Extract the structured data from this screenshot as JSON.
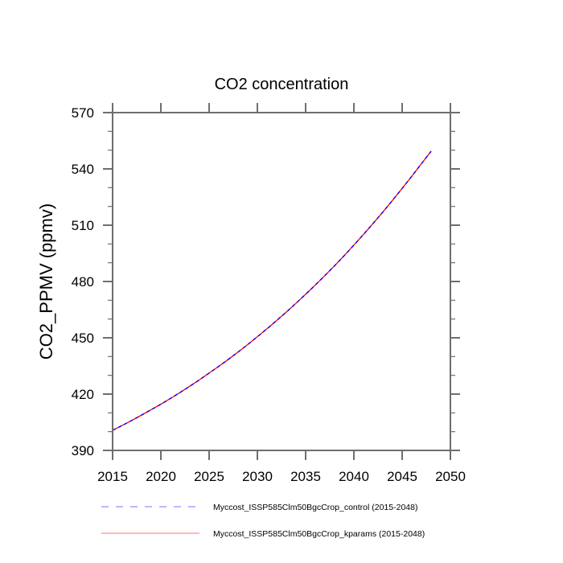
{
  "chart_data": {
    "type": "line",
    "title": "CO2 concentration",
    "xlabel": "",
    "ylabel": "CO2_PPMV  (ppmv)",
    "xlim": [
      2015,
      2050
    ],
    "ylim": [
      390,
      570
    ],
    "xticks": [
      2015,
      2020,
      2025,
      2030,
      2035,
      2040,
      2045,
      2050
    ],
    "xtick_labels": [
      "2015",
      "2020",
      "2025",
      "2030",
      "2035",
      "2040",
      "2045",
      "2050"
    ],
    "yticks": [
      390,
      420,
      450,
      480,
      510,
      540,
      570
    ],
    "ytick_labels": [
      "390",
      "420",
      "450",
      "480",
      "510",
      "540",
      "570"
    ],
    "grid": false,
    "legend_position": "bottom",
    "x": [
      2015,
      2016,
      2017,
      2018,
      2019,
      2020,
      2021,
      2022,
      2023,
      2024,
      2025,
      2026,
      2027,
      2028,
      2029,
      2030,
      2031,
      2032,
      2033,
      2034,
      2035,
      2036,
      2037,
      2038,
      2039,
      2040,
      2041,
      2042,
      2043,
      2044,
      2045,
      2046,
      2047,
      2048
    ],
    "series": [
      {
        "name": "Myccost_ISSP585Clm50BgcCrop_control (2015-2048)",
        "color": "#0000ff",
        "style": "dashed",
        "values": [
          400.7,
          403.3,
          406.0,
          408.8,
          411.7,
          414.6,
          417.7,
          420.9,
          424.2,
          427.6,
          431.2,
          434.8,
          438.5,
          442.4,
          446.4,
          450.6,
          454.8,
          459.2,
          463.7,
          468.4,
          473.2,
          478.1,
          483.2,
          488.4,
          493.8,
          499.4,
          505.1,
          511.0,
          517.0,
          523.2,
          529.6,
          536.1,
          542.8,
          549.4
        ]
      },
      {
        "name": "Myccost_ISSP585Clm50BgcCrop_kparams (2015-2048)",
        "color": "#ff0000",
        "style": "solid",
        "values": [
          400.7,
          403.3,
          406.0,
          408.8,
          411.7,
          414.6,
          417.7,
          420.9,
          424.2,
          427.6,
          431.2,
          434.8,
          438.5,
          442.4,
          446.4,
          450.6,
          454.8,
          459.2,
          463.7,
          468.4,
          473.2,
          478.1,
          483.2,
          488.4,
          493.8,
          499.4,
          505.1,
          511.0,
          517.0,
          523.2,
          529.6,
          536.1,
          542.8,
          549.4
        ]
      }
    ]
  }
}
